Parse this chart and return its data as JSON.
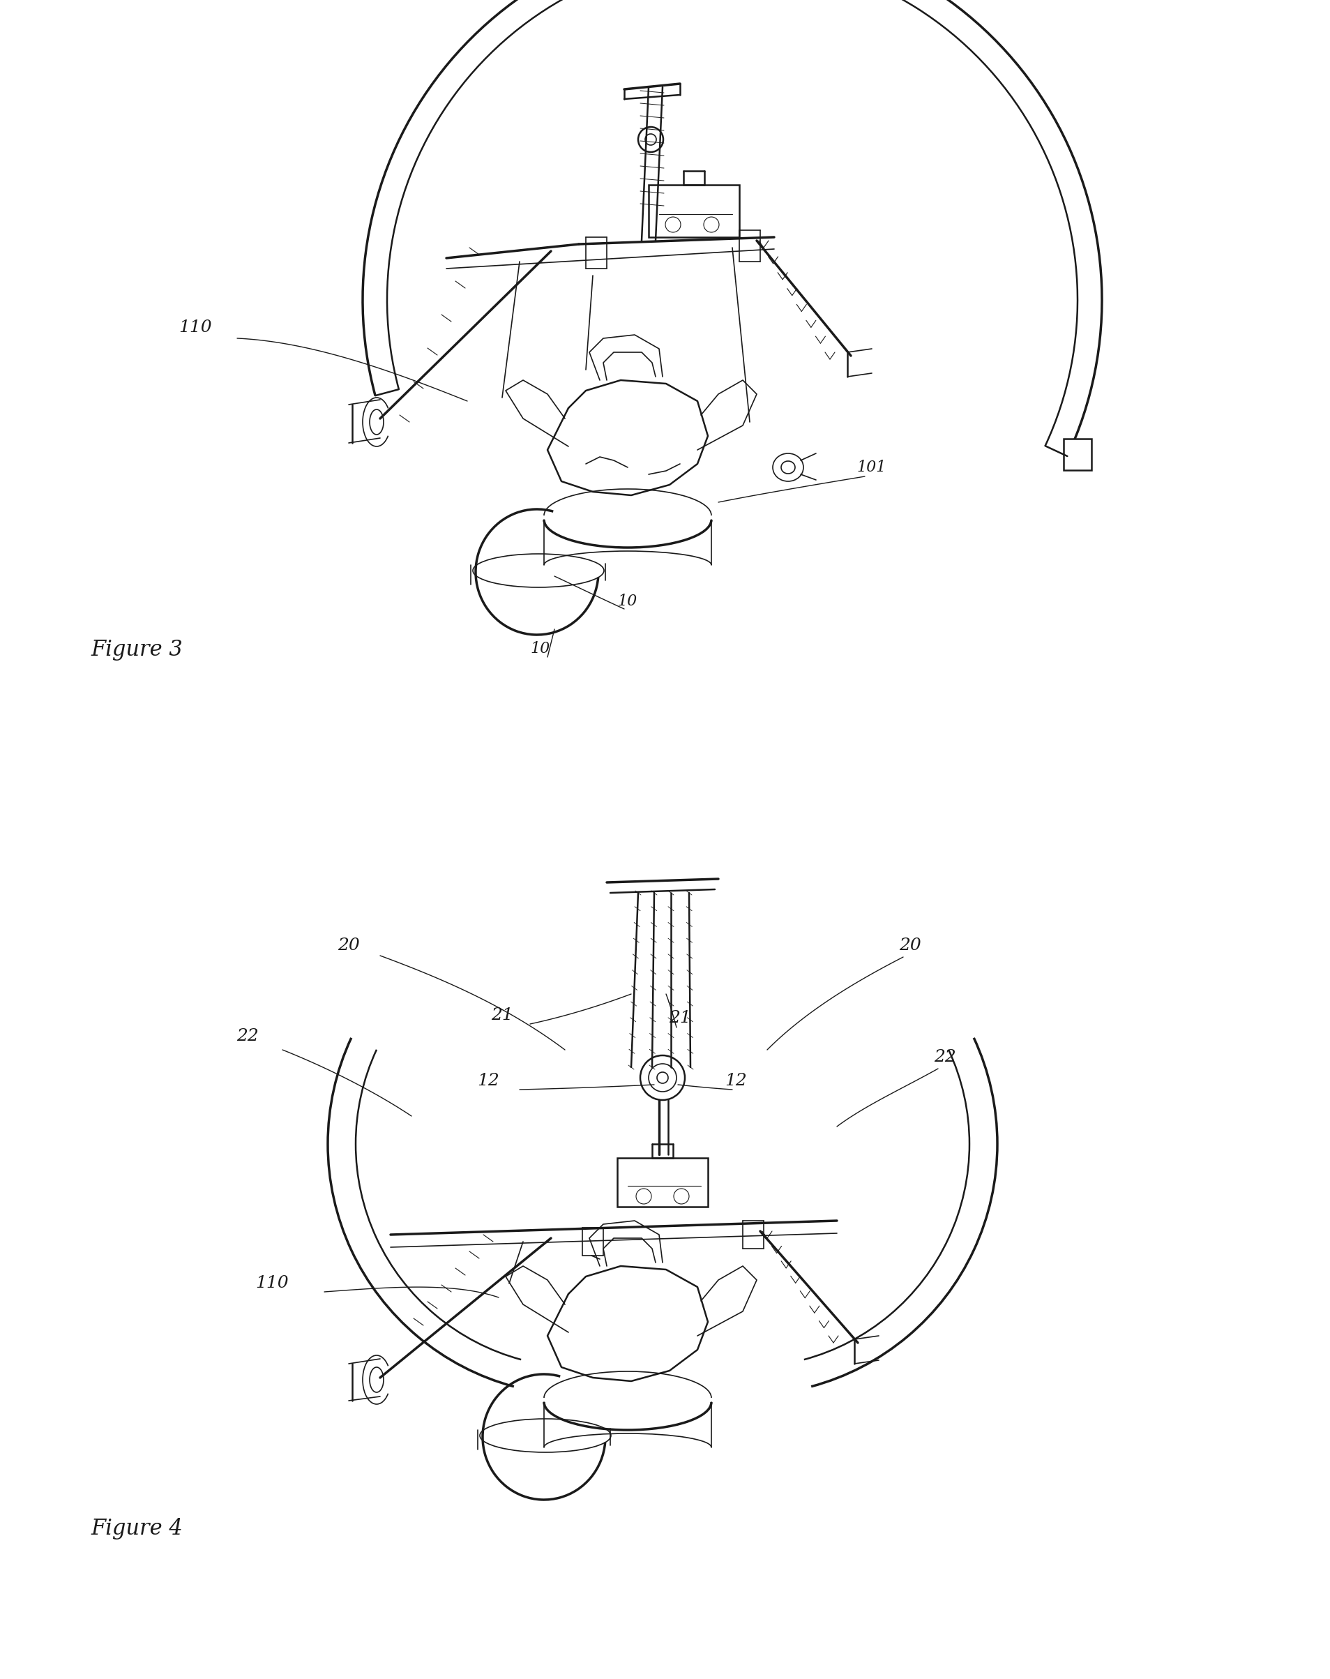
{
  "fig_width": 19.07,
  "fig_height": 24.07,
  "bg_color": "#ffffff",
  "line_color": "#1a1a1a",
  "figure3_label": "Figure 3",
  "figure4_label": "Figure 4"
}
